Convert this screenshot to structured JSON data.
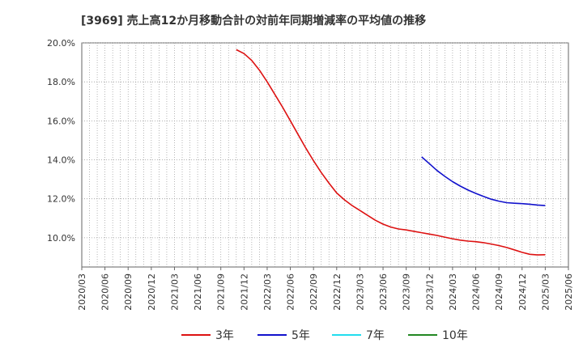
{
  "chart_data": {
    "type": "line",
    "title": "[3969]  売上高12か月移動合計の対前年同期増減率の平均値の推移",
    "xlabel": "",
    "ylabel": "",
    "ylim": [
      8.5,
      20.0
    ],
    "y_ticks": [
      "20.0%",
      "18.0%",
      "16.0%",
      "14.0%",
      "12.0%",
      "10.0%"
    ],
    "y_tick_values": [
      20,
      18,
      16,
      14,
      12,
      10
    ],
    "x_ticks": [
      "2020/03",
      "2020/06",
      "2020/09",
      "2020/12",
      "2021/03",
      "2021/06",
      "2021/09",
      "2021/12",
      "2022/03",
      "2022/06",
      "2022/09",
      "2022/12",
      "2023/03",
      "2023/06",
      "2023/09",
      "2023/12",
      "2024/03",
      "2024/06",
      "2024/09",
      "2024/12",
      "2025/03",
      "2025/06"
    ],
    "grid": true,
    "series": [
      {
        "name": "3年",
        "color": "#dd1111",
        "x": [
          "2021/11",
          "2021/12",
          "2022/01",
          "2022/02",
          "2022/03",
          "2022/04",
          "2022/05",
          "2022/06",
          "2022/07",
          "2022/08",
          "2022/09",
          "2022/10",
          "2022/11",
          "2022/12",
          "2023/01",
          "2023/02",
          "2023/03",
          "2023/04",
          "2023/05",
          "2023/06",
          "2023/07",
          "2023/08",
          "2023/09",
          "2023/10",
          "2023/11",
          "2023/12",
          "2024/01",
          "2024/02",
          "2024/03",
          "2024/04",
          "2024/05",
          "2024/06",
          "2024/07",
          "2024/08",
          "2024/09",
          "2024/10",
          "2024/11",
          "2024/12",
          "2025/01",
          "2025/02",
          "2025/03"
        ],
        "values": [
          19.65,
          19.45,
          19.1,
          18.6,
          18.0,
          17.35,
          16.7,
          16.0,
          15.3,
          14.6,
          13.95,
          13.35,
          12.8,
          12.3,
          11.95,
          11.65,
          11.4,
          11.15,
          10.9,
          10.7,
          10.55,
          10.45,
          10.4,
          10.33,
          10.26,
          10.19,
          10.12,
          10.03,
          9.95,
          9.88,
          9.83,
          9.8,
          9.75,
          9.68,
          9.6,
          9.5,
          9.38,
          9.25,
          9.15,
          9.12,
          9.13
        ]
      },
      {
        "name": "5年",
        "color": "#1111cc",
        "x": [
          "2023/11",
          "2023/12",
          "2024/01",
          "2024/02",
          "2024/03",
          "2024/04",
          "2024/05",
          "2024/06",
          "2024/07",
          "2024/08",
          "2024/09",
          "2024/10",
          "2024/11",
          "2024/12",
          "2025/01",
          "2025/02",
          "2025/03"
        ],
        "values": [
          14.15,
          13.8,
          13.45,
          13.15,
          12.88,
          12.65,
          12.45,
          12.28,
          12.12,
          11.98,
          11.88,
          11.8,
          11.77,
          11.75,
          11.72,
          11.68,
          11.65
        ]
      },
      {
        "name": "7年",
        "color": "#22ddee",
        "x": [],
        "values": []
      },
      {
        "name": "10年",
        "color": "#228822",
        "x": [],
        "values": []
      }
    ]
  }
}
